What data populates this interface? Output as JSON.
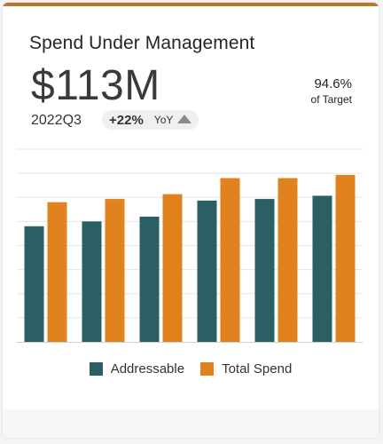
{
  "card": {
    "title": "Spend Under Management",
    "kpi_value": "$113M",
    "period": "2022Q3",
    "yoy_change": "+22%",
    "yoy_label": "YoY",
    "yoy_icon": "triangle-up-icon",
    "target_value": "94.6%",
    "target_label": "of Target"
  },
  "colors": {
    "addressable": "#2a5f63",
    "total_spend": "#e0821e",
    "accent_bar": "#b8782f",
    "grid": "#e6e6e6",
    "axis": "#cfcfcf"
  },
  "chart_data": {
    "type": "bar",
    "categories": [
      "",
      "",
      "",
      "",
      "",
      ""
    ],
    "series": [
      {
        "name": "Addressable",
        "values": [
          72,
          75,
          78,
          88,
          89,
          91
        ]
      },
      {
        "name": "Total Spend",
        "values": [
          87,
          89,
          92,
          102,
          102,
          104
        ]
      }
    ],
    "ylim": [
      0,
      120
    ],
    "grid": true,
    "legend_position": "bottom"
  }
}
